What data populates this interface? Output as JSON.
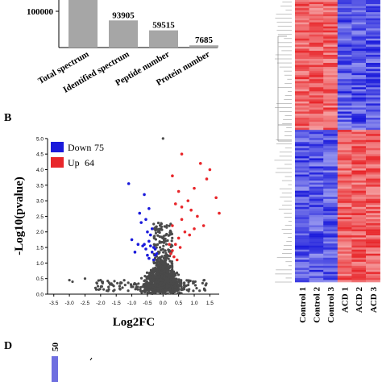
{
  "chart_data": [
    {
      "type": "bar",
      "categories": [
        "Total spectrum",
        "Identified spectrum",
        "Peptide number",
        "Protein number"
      ],
      "values": [
        170000,
        93905,
        59515,
        7685
      ],
      "value_labels": [
        "",
        "93905",
        "59515",
        "7685"
      ],
      "ytick_labels": [
        "100000"
      ],
      "ylim": [
        0,
        170000
      ],
      "bar_color": "#a6a6a6"
    },
    {
      "type": "scatter",
      "panel_label": "B",
      "ylabel": "-Log10(pvalue)",
      "xlabel": "Log2FC",
      "xlim": [
        -3.7,
        1.8
      ],
      "ylim": [
        0,
        5.1
      ],
      "xticks": [
        "-3.5",
        "-3.0",
        "-2.5",
        "-2.0",
        "-1.5",
        "-1.0",
        "-0.5",
        "0.0",
        "0.5",
        "1.0",
        "1.5"
      ],
      "yticks": [
        "0.0",
        "0.5",
        "1.0",
        "1.5",
        "2.0",
        "2.5",
        "3.0",
        "3.5",
        "4.0",
        "4.5",
        "5.0"
      ],
      "legend": [
        {
          "label": "Down",
          "count": "75",
          "color": "#1a1adb"
        },
        {
          "label": "Up",
          "count": "64",
          "color": "#e8262a"
        }
      ],
      "legend_position": "top-left",
      "colors": {
        "down": "#1a1adb",
        "up": "#e8262a",
        "ns": "#4a4a4a"
      },
      "down_points": [
        [
          -0.4,
          1.9
        ],
        [
          -0.5,
          2.0
        ],
        [
          -0.45,
          1.7
        ],
        [
          -0.6,
          1.6
        ],
        [
          -0.3,
          1.5
        ],
        [
          -0.35,
          1.35
        ],
        [
          -0.55,
          1.45
        ],
        [
          -0.25,
          1.25
        ],
        [
          -0.3,
          1.1
        ],
        [
          -0.45,
          1.15
        ],
        [
          -0.65,
          1.55
        ],
        [
          -0.8,
          1.6
        ],
        [
          -1.0,
          1.75
        ],
        [
          -0.7,
          2.3
        ],
        [
          -0.55,
          2.4
        ],
        [
          -0.5,
          1.25
        ],
        [
          -0.2,
          1.3
        ],
        [
          -0.25,
          1.45
        ],
        [
          -0.4,
          1.55
        ],
        [
          -0.35,
          2.1
        ],
        [
          -0.9,
          1.35
        ],
        [
          -1.1,
          3.55
        ],
        [
          -0.6,
          3.2
        ],
        [
          -0.75,
          2.6
        ],
        [
          -0.45,
          2.75
        ]
      ],
      "up_points": [
        [
          0.6,
          4.5
        ],
        [
          0.3,
          3.8
        ],
        [
          0.5,
          3.3
        ],
        [
          1.2,
          4.2
        ],
        [
          1.4,
          3.7
        ],
        [
          1.5,
          4.0
        ],
        [
          1.7,
          3.1
        ],
        [
          1.8,
          2.6
        ],
        [
          1.0,
          3.4
        ],
        [
          0.8,
          3.0
        ],
        [
          0.4,
          2.9
        ],
        [
          0.9,
          2.7
        ],
        [
          0.6,
          2.4
        ],
        [
          1.1,
          2.5
        ],
        [
          1.3,
          2.2
        ],
        [
          0.7,
          2.0
        ],
        [
          0.5,
          1.8
        ],
        [
          0.4,
          1.6
        ],
        [
          0.3,
          1.4
        ],
        [
          0.35,
          1.2
        ],
        [
          0.45,
          1.1
        ],
        [
          0.25,
          1.3
        ],
        [
          0.55,
          1.5
        ],
        [
          0.85,
          1.9
        ],
        [
          1.0,
          2.1
        ],
        [
          0.6,
          2.8
        ],
        [
          0.2,
          1.6
        ],
        [
          0.3,
          2.2
        ]
      ],
      "ns_points": [
        [
          0.0,
          5.0
        ],
        [
          -2.9,
          0.4
        ],
        [
          -2.5,
          0.5
        ],
        [
          -2.0,
          0.45
        ],
        [
          -3.0,
          0.45
        ]
      ]
    },
    {
      "type": "heatmap",
      "columns": [
        "Control 1",
        "Control 2",
        "Control 3",
        "ACD 1",
        "ACD 2",
        "ACD 3"
      ],
      "rows": 139,
      "colors": {
        "high": "#e8262a",
        "low": "#1a1adb",
        "mid": "#ffffff"
      }
    },
    {
      "type": "bar",
      "panel_label": "D",
      "value_labels": [
        "50"
      ],
      "bar_color": "#6f6fe0"
    }
  ]
}
